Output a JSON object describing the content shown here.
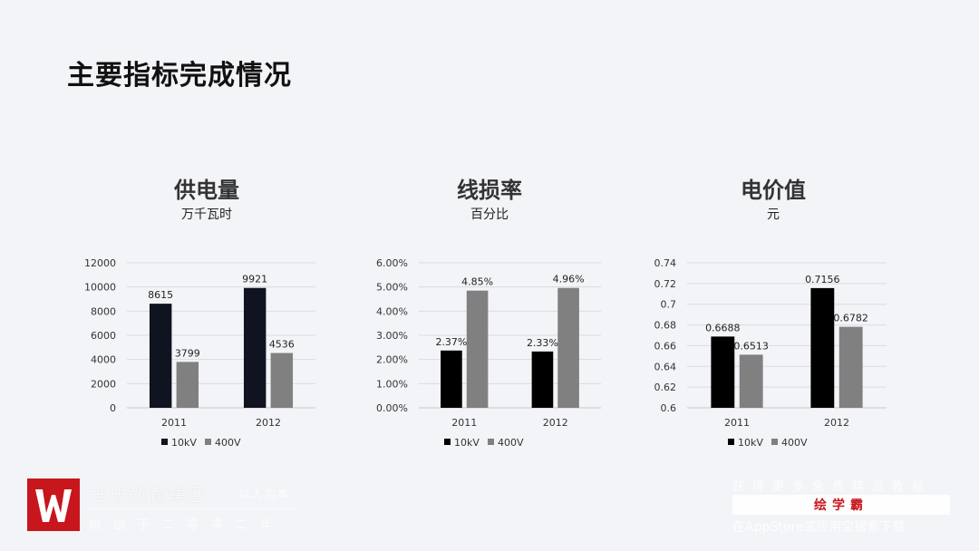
{
  "page": {
    "title": "主要指标完成情况"
  },
  "chart_data": [
    {
      "type": "bar",
      "title": "供电量",
      "subtitle": "万千瓦时",
      "categories": [
        "2011",
        "2012"
      ],
      "series": [
        {
          "name": "10kV",
          "values": [
            8615,
            9921
          ],
          "labels": [
            "8615",
            "9921"
          ],
          "color": "#0f1420"
        },
        {
          "name": "400V",
          "values": [
            3799,
            4536
          ],
          "labels": [
            "3799",
            "4536"
          ],
          "color": "#808080"
        }
      ],
      "ylim": [
        0,
        12000
      ],
      "yticks": [
        "12000",
        "10000",
        "8000",
        "6000",
        "4000",
        "2000",
        "0"
      ],
      "ytick_values": [
        12000,
        10000,
        8000,
        6000,
        4000,
        2000,
        0
      ],
      "grid": true,
      "legend": "bottom"
    },
    {
      "type": "bar",
      "title": "线损率",
      "subtitle": "百分比",
      "categories": [
        "2011",
        "2012"
      ],
      "series": [
        {
          "name": "10kV",
          "values": [
            2.37,
            2.33
          ],
          "labels": [
            "2.37%",
            "2.33%"
          ],
          "color": "#000000"
        },
        {
          "name": "400V",
          "values": [
            4.85,
            4.96
          ],
          "labels": [
            "4.85%",
            "4.96%"
          ],
          "color": "#808080"
        }
      ],
      "ylim": [
        0,
        6
      ],
      "yticks": [
        "6.00%",
        "5.00%",
        "4.00%",
        "3.00%",
        "2.00%",
        "1.00%",
        "0.00%"
      ],
      "ytick_values": [
        6,
        5,
        4,
        3,
        2,
        1,
        0
      ],
      "grid": true,
      "legend": "bottom"
    },
    {
      "type": "bar",
      "title": "电价值",
      "subtitle": "元",
      "categories": [
        "2011",
        "2012"
      ],
      "series": [
        {
          "name": "10kV",
          "values": [
            0.6688,
            0.7156
          ],
          "labels": [
            "0.6688",
            "0.7156"
          ],
          "color": "#000000"
        },
        {
          "name": "400V",
          "values": [
            0.6513,
            0.6782
          ],
          "labels": [
            "0.6513",
            "0.6782"
          ],
          "color": "#808080"
        }
      ],
      "ylim": [
        0.6,
        0.74
      ],
      "yticks": [
        "0.74",
        "0.72",
        "0.7",
        "0.68",
        "0.66",
        "0.64",
        "0.62",
        "0.6"
      ],
      "ytick_values": [
        0.74,
        0.72,
        0.7,
        0.68,
        0.66,
        0.64,
        0.62,
        0.6
      ],
      "grid": true,
      "legend": "bottom"
    }
  ],
  "footer": {
    "org_name": "王氏教育集团",
    "org_slogan": "以人为本",
    "org_founded": "始创于二零零二年",
    "promo_line1": "获得更多免费精品教程",
    "brand_name": "绘学霸",
    "promo_line2": "在AppStore或应用宝搜索下载"
  },
  "colors": {
    "background": "#f3f4f8",
    "brand_red": "#c8161d",
    "grid": "#dcdcdc"
  }
}
